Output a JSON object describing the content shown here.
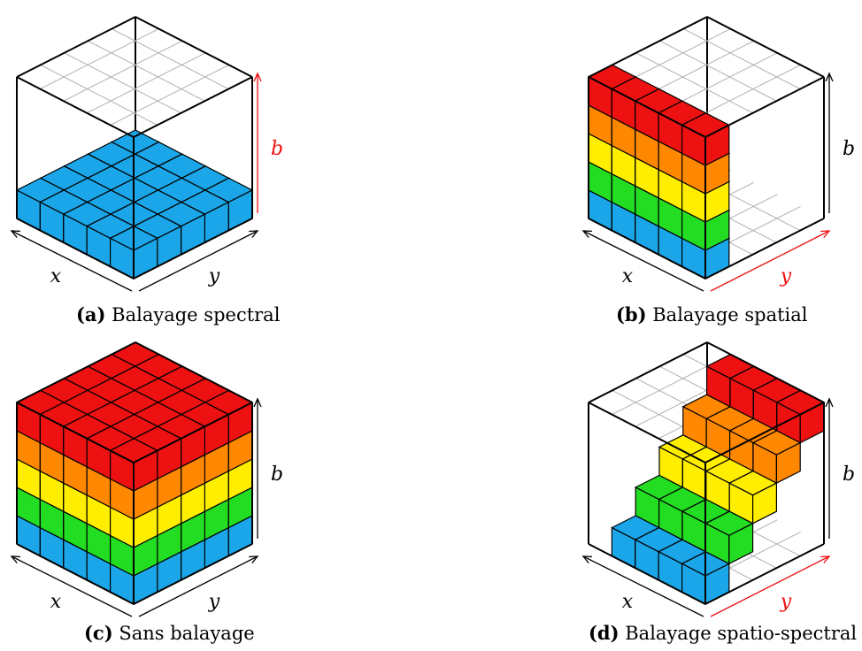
{
  "colors": {
    "blue": "#1aa6e8",
    "green": "#22dd22",
    "yellow": "#ffee00",
    "orange": "#ff8800",
    "red": "#ee1111",
    "highlight_axis": "#ee1111"
  },
  "panels": [
    {
      "id": "a",
      "letter": "(a)",
      "title": "Balayage spectral",
      "axes": {
        "x": "x",
        "y": "y",
        "b": "b"
      },
      "highlight": "b",
      "cells": "spectral"
    },
    {
      "id": "b",
      "letter": "(b)",
      "title": "Balayage spatial",
      "axes": {
        "x": "x",
        "y": "y",
        "b": "b"
      },
      "highlight": "y",
      "cells": "spatial"
    },
    {
      "id": "c",
      "letter": "(c)",
      "title": "Sans balayage",
      "axes": {
        "x": "x",
        "y": "y",
        "b": "b"
      },
      "highlight": "none",
      "cells": "full"
    },
    {
      "id": "d",
      "letter": "(d)",
      "title": "Balayage spatio-spectral",
      "axes": {
        "x": "x",
        "y": "y",
        "b": "b"
      },
      "highlight": "y",
      "cells": "spatio-spectral"
    }
  ]
}
